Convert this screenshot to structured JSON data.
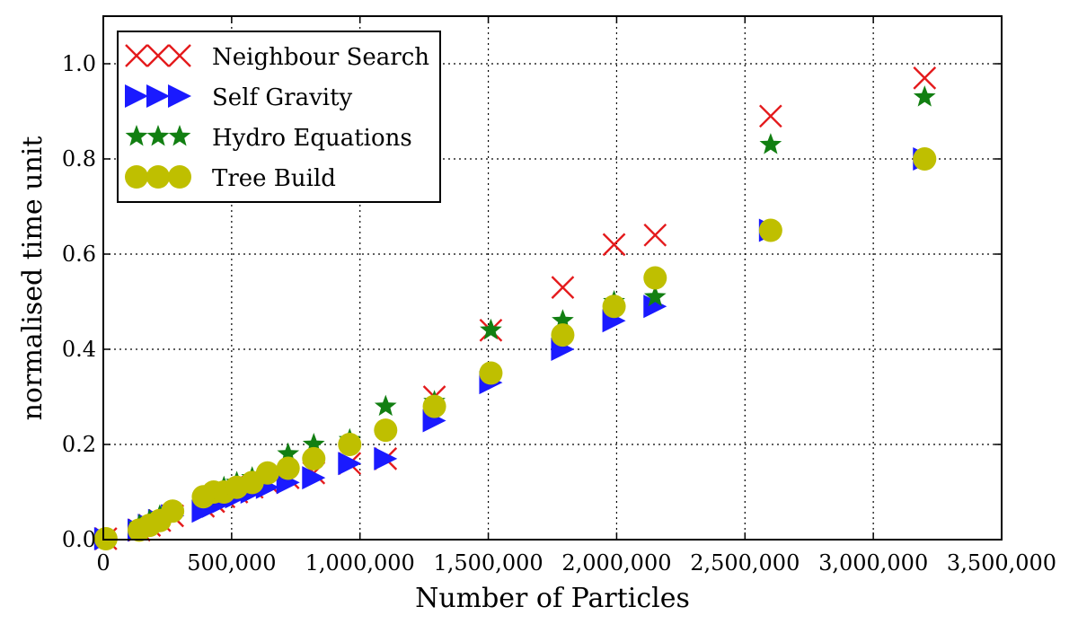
{
  "chart_data": {
    "type": "scatter",
    "title": "",
    "xlabel": "Number of Particles",
    "ylabel": "normalised time unit",
    "xlim": [
      0,
      3500000
    ],
    "ylim": [
      0,
      1.1
    ],
    "xticks": [
      0,
      500000,
      1000000,
      1500000,
      2000000,
      2500000,
      3000000,
      3500000
    ],
    "xtick_labels": [
      "0",
      "500,000",
      "1,000,000",
      "1,500,000",
      "2,000,000",
      "2,500,000",
      "3,000,000",
      "3,500,000"
    ],
    "yticks": [
      0.0,
      0.2,
      0.4,
      0.6,
      0.8,
      1.0
    ],
    "ytick_labels": [
      "0.0",
      "0.2",
      "0.4",
      "0.6",
      "0.8",
      "1.0"
    ],
    "grid": true,
    "legend_position": "top-left",
    "series": [
      {
        "name": "Neighbour Search",
        "marker": "x",
        "color": "#e41a1c",
        "points": [
          [
            10000,
            0.0
          ],
          [
            140000,
            0.02
          ],
          [
            180000,
            0.03
          ],
          [
            220000,
            0.04
          ],
          [
            270000,
            0.05
          ],
          [
            390000,
            0.07
          ],
          [
            430000,
            0.08
          ],
          [
            470000,
            0.09
          ],
          [
            520000,
            0.1
          ],
          [
            580000,
            0.11
          ],
          [
            640000,
            0.12
          ],
          [
            720000,
            0.13
          ],
          [
            820000,
            0.14
          ],
          [
            960000,
            0.16
          ],
          [
            1100000,
            0.17
          ],
          [
            1290000,
            0.3
          ],
          [
            1510000,
            0.44
          ],
          [
            1790000,
            0.53
          ],
          [
            1990000,
            0.62
          ],
          [
            2150000,
            0.64
          ],
          [
            2600000,
            0.89
          ],
          [
            3200000,
            0.97
          ]
        ]
      },
      {
        "name": "Self Gravity",
        "marker": "triangle-right",
        "color": "#1a1aff",
        "points": [
          [
            10000,
            0.0
          ],
          [
            140000,
            0.02
          ],
          [
            180000,
            0.03
          ],
          [
            220000,
            0.04
          ],
          [
            270000,
            0.05
          ],
          [
            390000,
            0.06
          ],
          [
            430000,
            0.07
          ],
          [
            470000,
            0.08
          ],
          [
            520000,
            0.09
          ],
          [
            580000,
            0.1
          ],
          [
            640000,
            0.11
          ],
          [
            720000,
            0.12
          ],
          [
            820000,
            0.13
          ],
          [
            960000,
            0.16
          ],
          [
            1100000,
            0.17
          ],
          [
            1290000,
            0.25
          ],
          [
            1510000,
            0.33
          ],
          [
            1790000,
            0.4
          ],
          [
            1990000,
            0.46
          ],
          [
            2150000,
            0.49
          ],
          [
            2600000,
            0.65
          ],
          [
            3200000,
            0.8
          ]
        ]
      },
      {
        "name": "Hydro Equations",
        "marker": "star",
        "color": "#127f12",
        "points": [
          [
            10000,
            0.0
          ],
          [
            140000,
            0.03
          ],
          [
            180000,
            0.04
          ],
          [
            220000,
            0.05
          ],
          [
            270000,
            0.06
          ],
          [
            390000,
            0.09
          ],
          [
            430000,
            0.1
          ],
          [
            470000,
            0.11
          ],
          [
            520000,
            0.12
          ],
          [
            580000,
            0.13
          ],
          [
            640000,
            0.14
          ],
          [
            720000,
            0.18
          ],
          [
            820000,
            0.2
          ],
          [
            960000,
            0.21
          ],
          [
            1100000,
            0.28
          ],
          [
            1290000,
            0.29
          ],
          [
            1510000,
            0.44
          ],
          [
            1790000,
            0.46
          ],
          [
            1990000,
            0.5
          ],
          [
            2150000,
            0.51
          ],
          [
            2600000,
            0.83
          ],
          [
            3200000,
            0.93
          ]
        ]
      },
      {
        "name": "Tree Build",
        "marker": "circle",
        "color": "#bfbf00",
        "points": [
          [
            10000,
            0.0
          ],
          [
            140000,
            0.02
          ],
          [
            180000,
            0.03
          ],
          [
            220000,
            0.04
          ],
          [
            270000,
            0.06
          ],
          [
            390000,
            0.09
          ],
          [
            430000,
            0.1
          ],
          [
            470000,
            0.1
          ],
          [
            520000,
            0.11
          ],
          [
            580000,
            0.12
          ],
          [
            640000,
            0.14
          ],
          [
            720000,
            0.15
          ],
          [
            820000,
            0.17
          ],
          [
            960000,
            0.2
          ],
          [
            1100000,
            0.23
          ],
          [
            1290000,
            0.28
          ],
          [
            1510000,
            0.35
          ],
          [
            1790000,
            0.43
          ],
          [
            1990000,
            0.49
          ],
          [
            2150000,
            0.55
          ],
          [
            2600000,
            0.65
          ],
          [
            3200000,
            0.8
          ]
        ]
      }
    ]
  }
}
